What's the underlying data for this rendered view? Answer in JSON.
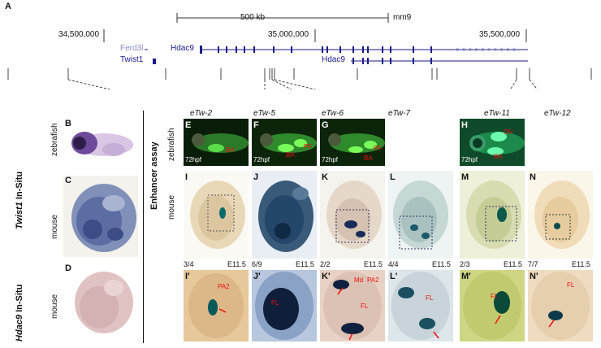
{
  "panel_a": {
    "letter": "A",
    "scale_label": "500 kb",
    "assembly": "mm9",
    "coord_left": "34,500,000",
    "coord_mid": "35,000,000",
    "coord_right": "35,500,000",
    "genes": [
      "Ferd3l",
      "Twist1",
      "Hdac9",
      "Hdac9"
    ],
    "enhancers": [
      "eTw-2",
      "eTw-5",
      "eTw-6",
      "eTw-7",
      "eTw-11",
      "eTw-12"
    ]
  },
  "left_labels": {
    "twist_insitu_gene": "Twist1",
    "twist_insitu_suffix": " In-Situ",
    "hdac_insitu_gene": "Hdac9",
    "hdac_insitu_suffix": " In-Situ",
    "enhancer_assay": "Enhancer assay",
    "zebrafish": "zebrafish",
    "mouse": "mouse"
  },
  "left_panels": [
    {
      "letter": "B",
      "species": "zebrafish"
    },
    {
      "letter": "C",
      "species": "mouse"
    },
    {
      "letter": "D",
      "species": "mouse"
    }
  ],
  "zebrafish_panels": [
    {
      "letter": "E",
      "stage": "72hpf",
      "labels": [
        "BA"
      ]
    },
    {
      "letter": "F",
      "stage": "72hpf",
      "labels": [
        "BA",
        "PF"
      ]
    },
    {
      "letter": "G",
      "stage": "72hpf",
      "labels": [
        "BA",
        "PF"
      ]
    },
    {
      "letter": "H",
      "stage": "72hpf",
      "labels": [
        "OV",
        "BA"
      ]
    }
  ],
  "mouse_panels": [
    {
      "letter": "I",
      "ratio": "3/4",
      "stage": "E11.5"
    },
    {
      "letter": "J",
      "ratio": "6/9",
      "stage": "E11.5"
    },
    {
      "letter": "K",
      "ratio": "2/2",
      "stage": "E11.5"
    },
    {
      "letter": "L",
      "ratio": "4/4",
      "stage": "E11.5"
    },
    {
      "letter": "M",
      "ratio": "2/3",
      "stage": "E11.5"
    },
    {
      "letter": "N",
      "ratio": "7/7",
      "stage": "E11.5"
    }
  ],
  "closeup_panels": [
    {
      "letter": "I'",
      "labels": [
        "PA2"
      ]
    },
    {
      "letter": "J'",
      "labels": [
        "FL"
      ]
    },
    {
      "letter": "K'",
      "labels": [
        "Md",
        "PA2",
        "FL"
      ]
    },
    {
      "letter": "L'",
      "labels": [
        "FL"
      ]
    },
    {
      "letter": "M'",
      "labels": [
        "FL"
      ]
    },
    {
      "letter": "N'",
      "labels": [
        "FL"
      ]
    }
  ],
  "colors": {
    "gene_blue": "#1a1a8c",
    "gene_light": "#8a8acf",
    "arrow_red": "#e11111",
    "fish_green": "#2bbb3a"
  }
}
